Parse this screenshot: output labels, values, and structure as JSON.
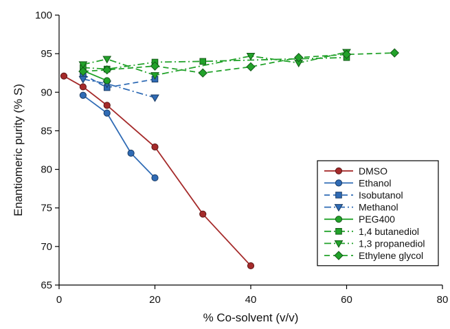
{
  "chart_data": {
    "type": "line",
    "title": "",
    "xlabel": "% Co-solvent (v/v)",
    "ylabel": "Enantiomeric purity (% S)",
    "xlim": [
      0,
      80
    ],
    "ylim": [
      65,
      100
    ],
    "x_ticks": [
      0,
      20,
      40,
      60,
      80
    ],
    "y_ticks": [
      65,
      70,
      75,
      80,
      85,
      90,
      95,
      100
    ],
    "grid": false,
    "legend_position": "bottom-right",
    "series": [
      {
        "name": "DMSO",
        "color": "#a52a2a",
        "marker": "circle",
        "line": "solid",
        "x": [
          1,
          5,
          10,
          20,
          30,
          40
        ],
        "y": [
          92.1,
          90.7,
          88.3,
          82.9,
          74.2,
          67.5
        ]
      },
      {
        "name": "Ethanol",
        "color": "#2f6bb5",
        "marker": "circle",
        "line": "solid",
        "x": [
          5,
          10,
          15,
          20
        ],
        "y": [
          89.6,
          87.3,
          82.1,
          78.9
        ]
      },
      {
        "name": "Isobutanol",
        "color": "#2f6bb5",
        "marker": "square",
        "line": "dashed",
        "x": [
          5,
          10,
          20
        ],
        "y": [
          92.3,
          90.6,
          91.7
        ]
      },
      {
        "name": "Methanol",
        "color": "#2f6bb5",
        "marker": "triangle-down",
        "line": "dashdot",
        "x": [
          5,
          10,
          20
        ],
        "y": [
          91.7,
          91.1,
          89.3
        ]
      },
      {
        "name": "PEG400",
        "color": "#22a22a",
        "marker": "circle",
        "line": "solid",
        "x": [
          5,
          10
        ],
        "y": [
          92.8,
          91.5
        ]
      },
      {
        "name": "1,4 butanediol",
        "color": "#22a22a",
        "marker": "square",
        "line": "dashdot",
        "x": [
          5,
          10,
          20,
          30,
          60
        ],
        "y": [
          93.2,
          93.0,
          93.9,
          94.0,
          94.5
        ]
      },
      {
        "name": "1,3 propanediol",
        "color": "#22a22a",
        "marker": "triangle-down",
        "line": "dashdot",
        "x": [
          5,
          10,
          20,
          40,
          50,
          60
        ],
        "y": [
          93.6,
          94.3,
          92.2,
          94.7,
          93.8,
          95.2
        ]
      },
      {
        "name": "Ethylene glycol",
        "color": "#22a22a",
        "marker": "diamond",
        "line": "dashed",
        "x": [
          5,
          10,
          20,
          30,
          40,
          50,
          60,
          70
        ],
        "y": [
          92.7,
          92.9,
          93.4,
          92.5,
          93.3,
          94.5,
          94.9,
          95.1
        ]
      }
    ]
  }
}
